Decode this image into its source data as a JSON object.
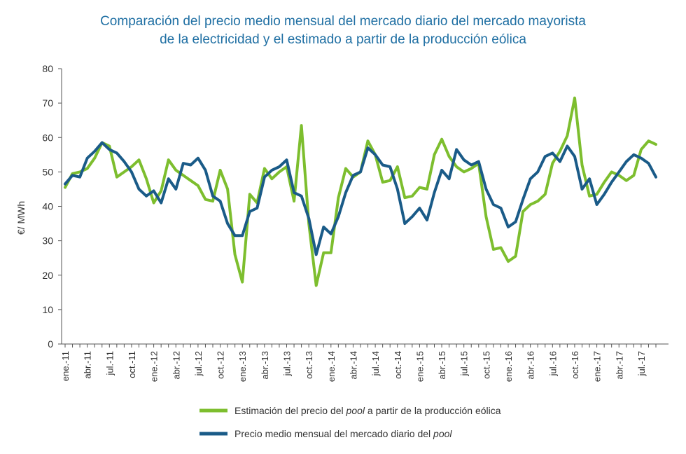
{
  "chart_data": {
    "type": "line",
    "title_lines": [
      "Comparación del precio medio mensual del mercado diario del mercado mayorista",
      "de la electricidad y el estimado a partir de la producción eólica"
    ],
    "xlabel": "",
    "ylabel": "€/ MWh",
    "ylim": [
      0,
      80
    ],
    "yticks": [
      0,
      10,
      20,
      30,
      40,
      50,
      60,
      70,
      80
    ],
    "x_tick_labels": [
      "ene.-11",
      "abr.-11",
      "jul.-11",
      "oct.-11",
      "ene.-12",
      "abr.-12",
      "jul.-12",
      "oct.-12",
      "ene.-13",
      "abr.-13",
      "jul.-13",
      "oct.-13",
      "ene.-14",
      "abr.-14",
      "jul.-14",
      "oct.-14",
      "ene.-15",
      "abr.-15",
      "jul.-15",
      "oct.-15",
      "ene.-16",
      "abr.-16",
      "jul.-16",
      "oct.-16",
      "ene.-17",
      "abr.-17",
      "jul.-17"
    ],
    "months_count": 81,
    "grid": false,
    "legend_position": "bottom",
    "series": [
      {
        "name_parts": [
          "Estimación del precio del ",
          "pool",
          " a partir de la producción eólica"
        ],
        "color": "#7dbe2e",
        "values": [
          45.5,
          49.5,
          50,
          51,
          54,
          58.5,
          57.5,
          48.5,
          50,
          51.5,
          53.5,
          48,
          41,
          44.5,
          53.5,
          50.5,
          49,
          47.5,
          46,
          42,
          41.5,
          50.5,
          45,
          26,
          18,
          43.5,
          41,
          51,
          48,
          50,
          51.5,
          41.5,
          63.5,
          35,
          17,
          26.5,
          26.5,
          42.5,
          51,
          48.5,
          50,
          59,
          55,
          47,
          47.5,
          51.5,
          42.5,
          43,
          45.5,
          45,
          55,
          59.5,
          54.5,
          51.5,
          50,
          51,
          52.5,
          37,
          27.5,
          28,
          24,
          25.5,
          38.5,
          40.5,
          41.5,
          43.5,
          52.5,
          56,
          60.5,
          71.5,
          52,
          43,
          43.5,
          47,
          50,
          49,
          47.5,
          49,
          56.5,
          59,
          58
        ]
      },
      {
        "name_parts": [
          "Precio medio mensual del mercado diario del ",
          "pool",
          ""
        ],
        "color": "#1a5b88",
        "values": [
          46.5,
          49,
          48.5,
          54,
          56,
          58.5,
          56.5,
          55.5,
          53,
          50,
          45,
          43,
          44.5,
          41,
          48,
          45,
          52.5,
          52,
          54,
          50.5,
          43,
          41.5,
          35,
          31.5,
          31.5,
          38.5,
          39.5,
          48.5,
          50.5,
          51.5,
          53.5,
          44,
          43,
          36.5,
          26,
          34,
          32,
          37,
          44,
          49,
          50,
          57,
          55,
          52,
          51.5,
          45,
          35,
          37,
          39.5,
          36,
          44,
          50.5,
          48,
          56.5,
          53.5,
          52,
          53,
          45,
          40.5,
          39.5,
          34,
          35.5,
          42,
          48,
          50,
          54.5,
          55.5,
          53,
          57.5,
          54.5,
          45,
          48,
          40.5,
          43.5,
          47,
          50,
          53,
          55,
          54,
          52.5,
          48.5
        ]
      }
    ]
  },
  "colors": {
    "title": "#1f6fa3",
    "axis": "#555555"
  }
}
